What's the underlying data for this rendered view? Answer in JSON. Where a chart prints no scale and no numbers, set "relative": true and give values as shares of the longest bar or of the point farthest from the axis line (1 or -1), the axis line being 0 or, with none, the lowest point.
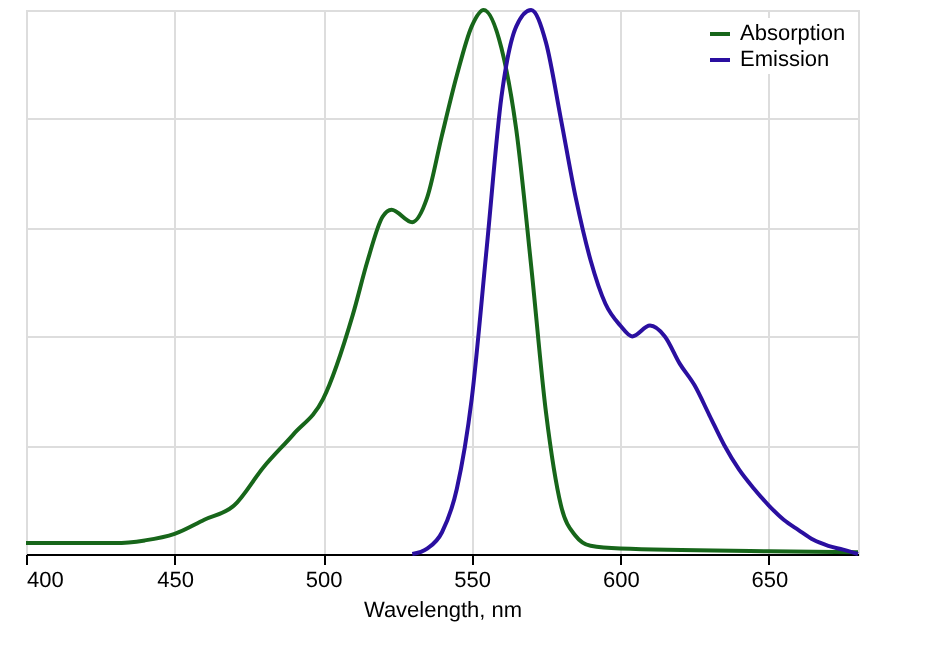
{
  "chart_data": {
    "type": "line",
    "relative": true,
    "xlabel": "Wavelength, nm",
    "xlim": [
      400,
      680
    ],
    "xticks": [
      400,
      450,
      500,
      550,
      600,
      650
    ],
    "grid": true,
    "legend": "top right",
    "line_style": "solid",
    "marker": "none",
    "series": [
      {
        "name": "Absorption",
        "color": "#17661a",
        "x": [
          400,
          430,
          440,
          450,
          460,
          470,
          480,
          490,
          500,
          510,
          515,
          520,
          523,
          530,
          535,
          540,
          545,
          550,
          554,
          560,
          565,
          570,
          575,
          580,
          585,
          590,
          600,
          650,
          680
        ],
        "values": [
          0.02,
          0.02,
          0.025,
          0.037,
          0.063,
          0.089,
          0.16,
          0.22,
          0.285,
          0.44,
          0.54,
          0.62,
          0.633,
          0.61,
          0.655,
          0.77,
          0.88,
          0.97,
          1.0,
          0.93,
          0.78,
          0.53,
          0.26,
          0.09,
          0.033,
          0.015,
          0.01,
          0.005,
          0.003
        ]
      },
      {
        "name": "Emission",
        "color": "#2a0fa0",
        "x": [
          530,
          535,
          540,
          545,
          550,
          555,
          560,
          565,
          570,
          575,
          580,
          585,
          590,
          595,
          600,
          604,
          610,
          615,
          620,
          625,
          630,
          635,
          640,
          645,
          650,
          655,
          660,
          665,
          670,
          675,
          680
        ],
        "values": [
          0.0,
          0.01,
          0.04,
          0.12,
          0.285,
          0.56,
          0.84,
          0.97,
          1.0,
          0.94,
          0.8,
          0.655,
          0.54,
          0.46,
          0.42,
          0.4,
          0.42,
          0.4,
          0.35,
          0.31,
          0.255,
          0.2,
          0.155,
          0.12,
          0.089,
          0.063,
          0.044,
          0.026,
          0.015,
          0.008,
          0.0
        ]
      }
    ]
  }
}
